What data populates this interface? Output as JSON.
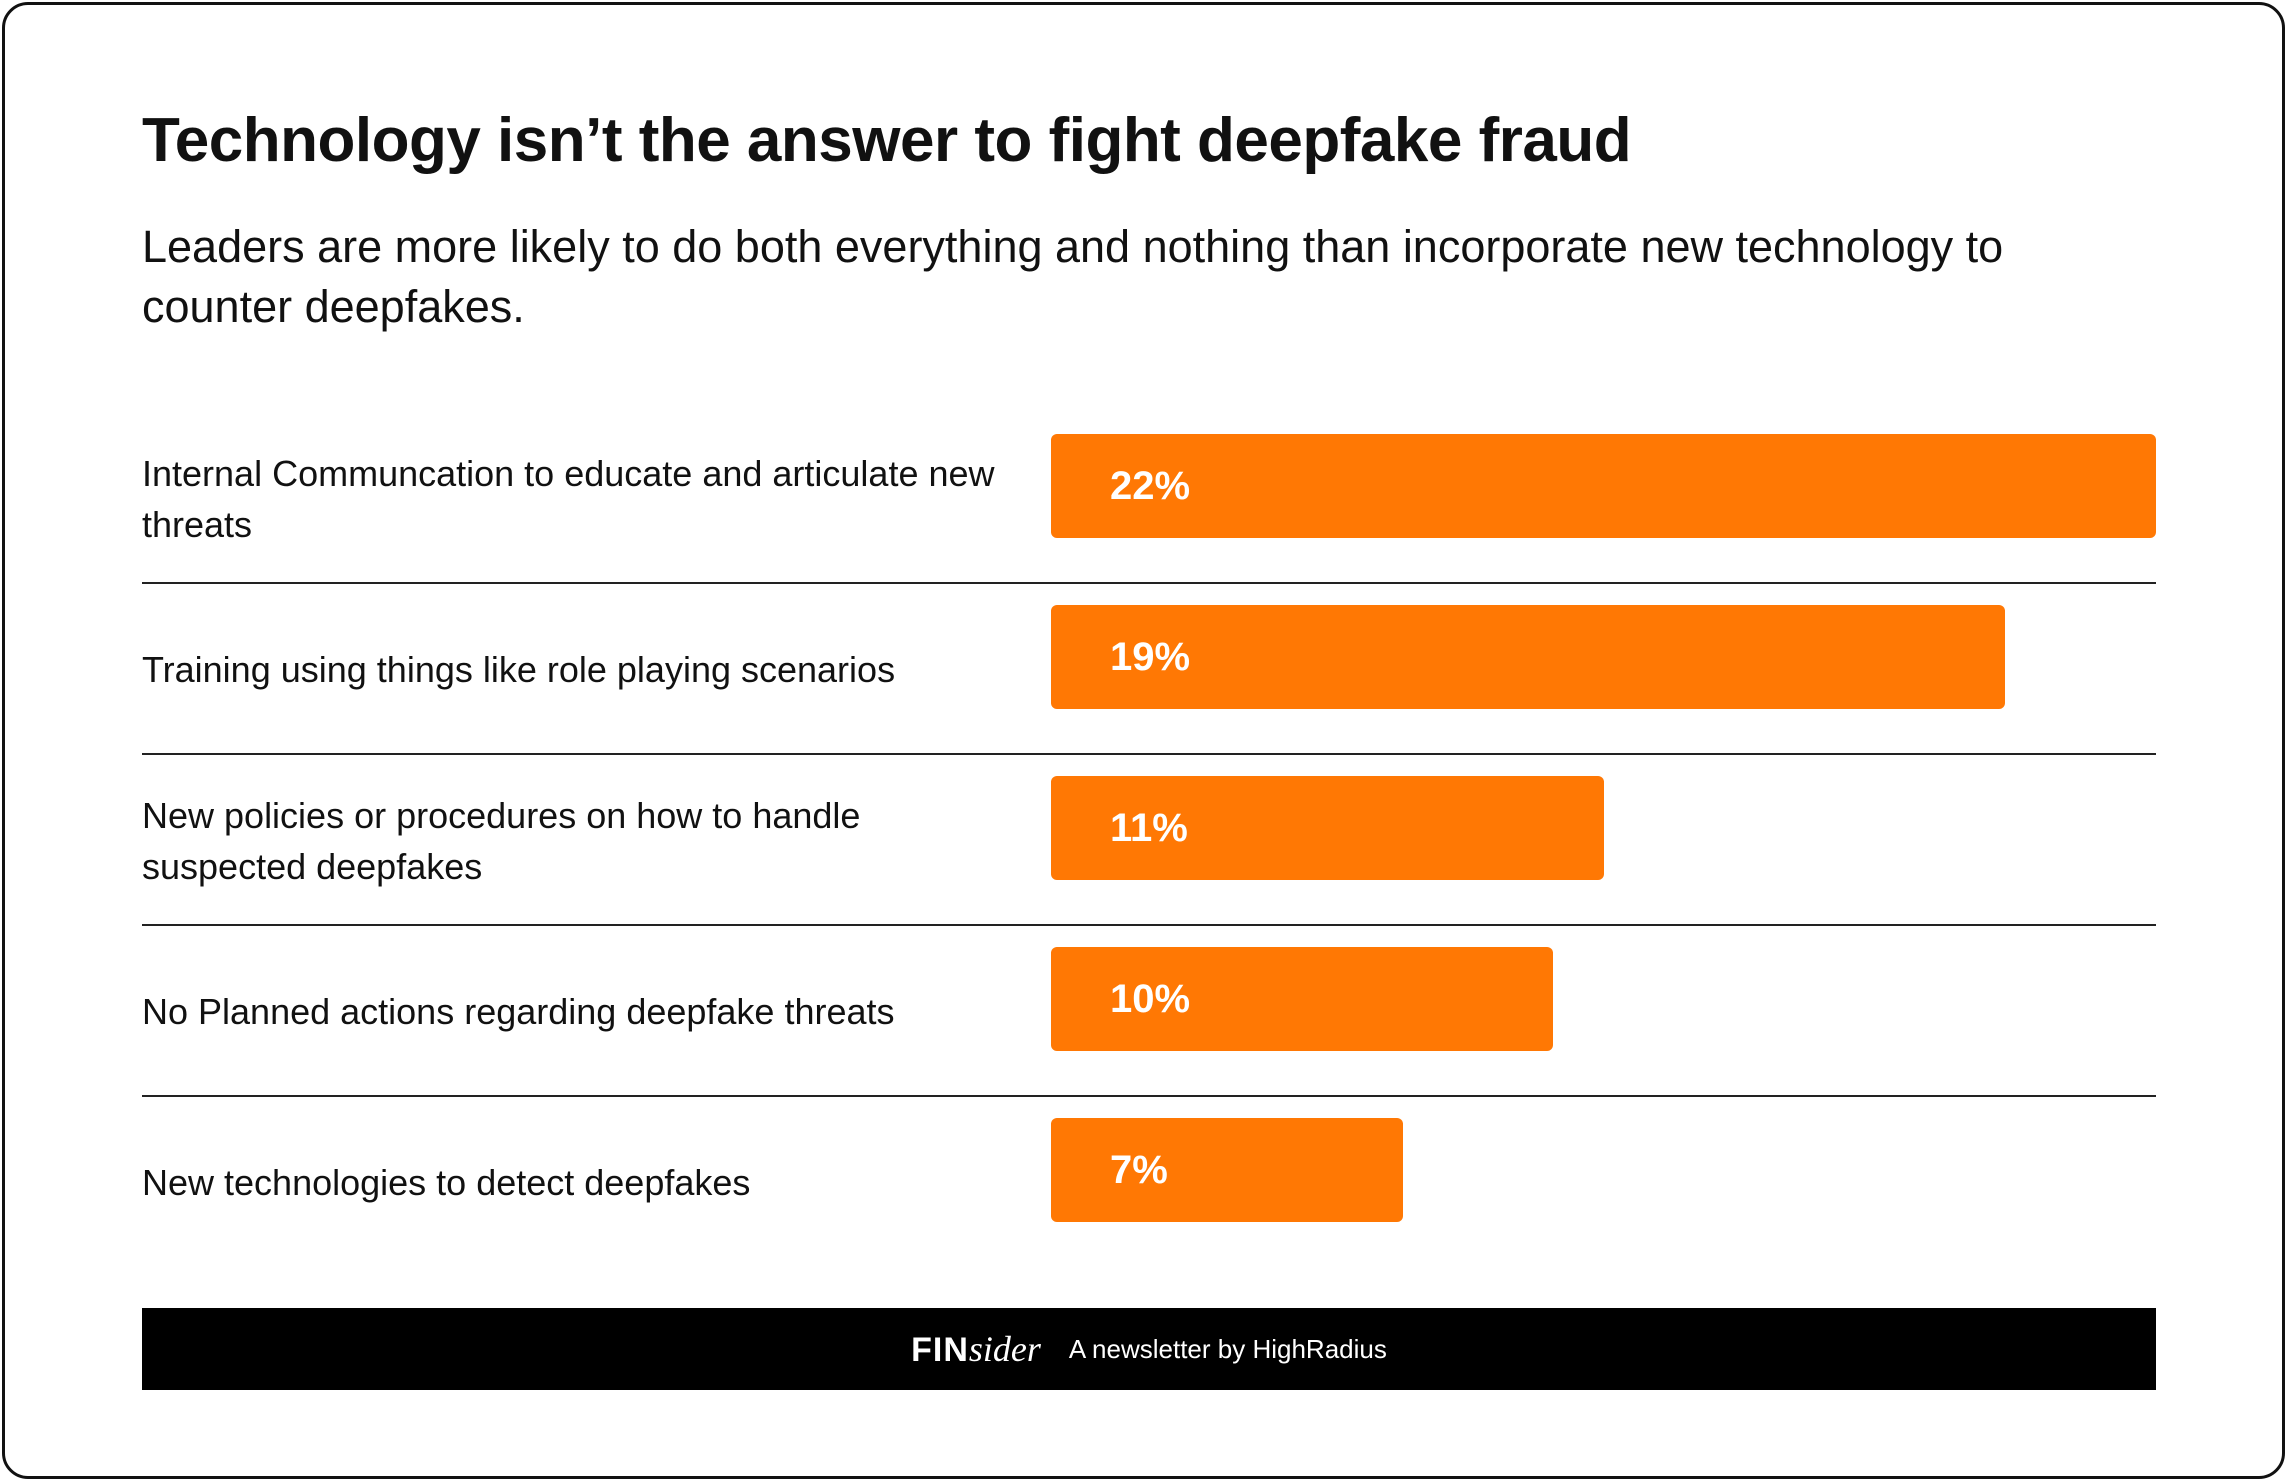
{
  "header": {
    "title": "Technology isn’t the answer to fight deepfake fraud",
    "subtitle": "Leaders are more likely to do both everything and nothing than incorporate new technology to counter deepfakes."
  },
  "chart_data": {
    "type": "bar",
    "orientation": "horizontal",
    "title": "Technology isn’t the answer to fight deepfake fraud",
    "subtitle": "Leaders are more likely to do both everything and nothing than incorporate new technology to counter deepfakes.",
    "categories": [
      "Internal Communcation to educate and articulate new threats",
      "Training using things like role playing scenarios",
      "New policies or procedures on how to handle suspected deepfakes",
      "No Planned actions regarding deepfake threats",
      "New technologies to detect deepfakes"
    ],
    "values": [
      22,
      19,
      11,
      10,
      7
    ],
    "value_labels": [
      "22%",
      "19%",
      "11%",
      "10%",
      "7%"
    ],
    "unit": "%",
    "xlim": [
      0,
      22
    ],
    "grid": false,
    "bar_color": "#ff7804"
  },
  "footer": {
    "brand_bold": "FIN",
    "brand_italic": "sider",
    "tagline": "A newsletter by HighRadius"
  },
  "colors": {
    "accent": "#ff7804",
    "text": "#111111",
    "footer_bg": "#000000"
  }
}
